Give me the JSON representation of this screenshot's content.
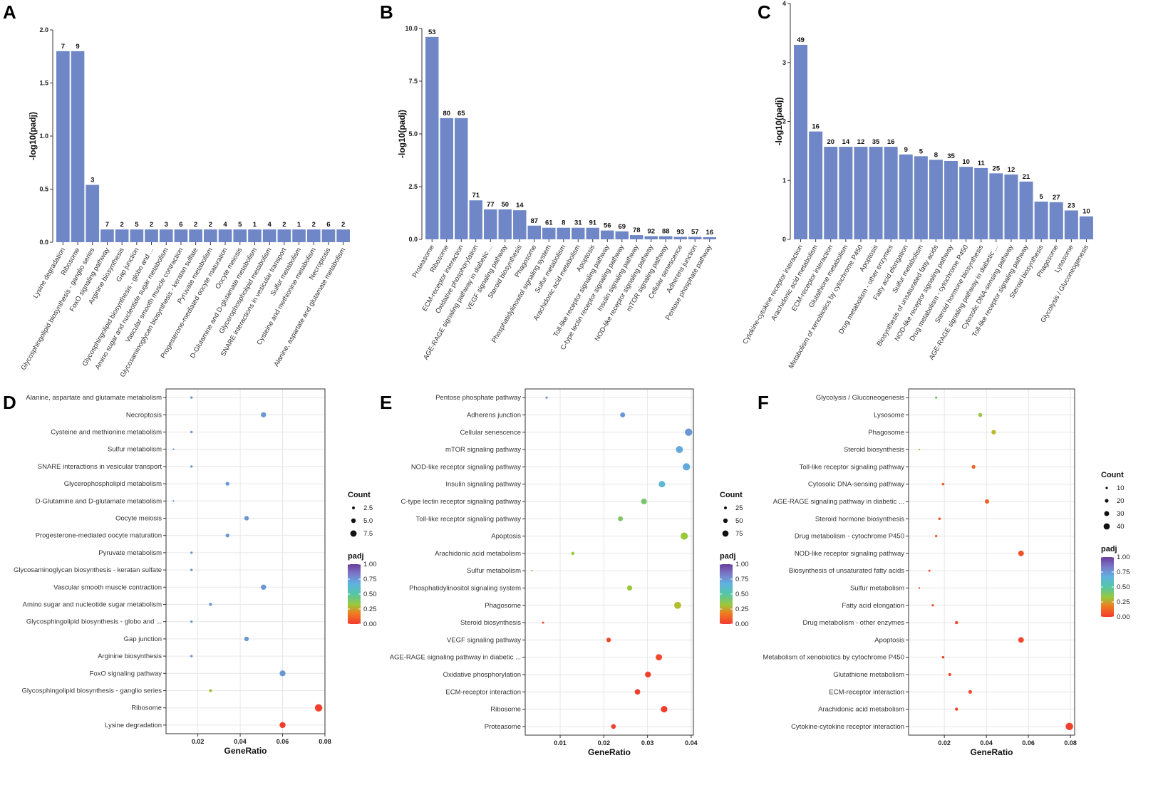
{
  "figure": {
    "panels": [
      "A",
      "B",
      "C",
      "D",
      "E",
      "F"
    ]
  },
  "colors": {
    "bar": "#6f87c6",
    "grid": "#e6e6e6",
    "frame": "#333333"
  },
  "chart_data": [
    {
      "type": "bar",
      "panel": "A",
      "ylabel": "-log10(padj)",
      "ylim": [
        0,
        2.0
      ],
      "yticks": [
        "0.0",
        "0.5",
        "1.0",
        "1.5",
        "2.0"
      ],
      "categories": [
        "Lysine degradation",
        "Ribosome",
        "Glycosphingolipid biosynthesis - ganglio series",
        "FoxO signaling pathway",
        "Arginine biosynthesis",
        "Gap junction",
        "Glycosphingolipid biosynthesis - globo and ...",
        "Amino sugar and nucleotide sugar metabolism",
        "Vascular smooth muscle contraction",
        "Glycosaminoglycan biosynthesis - keratan sulfate",
        "Pyruvate metabolism",
        "Progesterone-mediated oocyte maturation",
        "Oocyte meiosis",
        "D-Glutamine and D-glutamate metabolism",
        "Glycerophospholipid metabolism",
        "SNARE interactions in vesicular transport",
        "Sulfur metabolism",
        "Cysteine and methionine metabolism",
        "Necroptosis",
        "Alanine, aspartate and glutamate metabolism"
      ],
      "values": [
        1.8,
        1.8,
        0.54,
        0.12,
        0.12,
        0.12,
        0.12,
        0.12,
        0.12,
        0.12,
        0.12,
        0.12,
        0.12,
        0.12,
        0.12,
        0.12,
        0.12,
        0.12,
        0.12,
        0.12
      ],
      "labels": [
        "7",
        "9",
        "3",
        "7",
        "2",
        "5",
        "2",
        "3",
        "6",
        "2",
        "2",
        "4",
        "5",
        "1",
        "4",
        "2",
        "1",
        "2",
        "6",
        "2"
      ]
    },
    {
      "type": "bar",
      "panel": "B",
      "ylabel": "-log10(padj)",
      "ylim": [
        0,
        10.0
      ],
      "yticks": [
        "0.0",
        "2.5",
        "5.0",
        "7.5",
        "10.0"
      ],
      "categories": [
        "Proteasome",
        "Ribosome",
        "ECM-receptor interaction",
        "Oxidative phosphorylation",
        "AGE-RAGE signaling pathway in diabetic ...",
        "VEGF signaling pathway",
        "Steroid biosynthesis",
        "Phagosome",
        "Phosphatidylinositol signaling system",
        "Sulfur metabolism",
        "Arachidonic acid metabolism",
        "Apoptosis",
        "Toll-like receptor signaling pathway",
        "C-type lectin receptor signaling pathway",
        "Insulin signaling pathway",
        "NOD-like receptor signaling pathway",
        "mTOR signaling pathway",
        "Cellular senescence",
        "Adherens junction",
        "Pentose phosphate pathway"
      ],
      "values": [
        9.6,
        5.75,
        5.75,
        1.85,
        1.42,
        1.42,
        1.38,
        0.65,
        0.55,
        0.55,
        0.55,
        0.55,
        0.42,
        0.38,
        0.2,
        0.15,
        0.15,
        0.12,
        0.12,
        0.1
      ],
      "labels": [
        "53",
        "80",
        "65",
        "71",
        "77",
        "50",
        "14",
        "87",
        "61",
        "8",
        "31",
        "91",
        "56",
        "69",
        "78",
        "92",
        "88",
        "93",
        "57",
        "16"
      ]
    },
    {
      "type": "bar",
      "panel": "C",
      "ylabel": "-log10(padj)",
      "ylim": [
        0,
        4
      ],
      "yticks": [
        "0",
        "1",
        "2",
        "3",
        "4"
      ],
      "categories": [
        "Cytokine-cytokine receptor interaction",
        "Arachidonic acid metabolism",
        "ECM-receptor interaction",
        "Glutathione metabolism",
        "Metabolism of xenobiotics by cytochrome P450",
        "Apoptosis",
        "Drug metabolism - other enzymes",
        "Fatty acid elongation",
        "Sulfur metabolism",
        "Biosynthesis of unsaturated fatty acids",
        "NOD-like receptor signaling pathway",
        "Drug metabolism - cytochrome P450",
        "Steroid hormone biosynthesis",
        "AGE-RAGE signaling pathway in diabetic ...",
        "Cytosolic DNA-sensing pathway",
        "Toll-like receptor signaling pathway",
        "Steroid biosynthesis",
        "Phagosome",
        "Lysosome",
        "Glycolysis / Gluconeogenesis"
      ],
      "values": [
        3.3,
        1.83,
        1.57,
        1.57,
        1.57,
        1.57,
        1.57,
        1.44,
        1.41,
        1.35,
        1.33,
        1.23,
        1.21,
        1.12,
        1.1,
        0.98,
        0.64,
        0.63,
        0.49,
        0.39
      ],
      "labels": [
        "49",
        "16",
        "20",
        "14",
        "12",
        "35",
        "16",
        "9",
        "5",
        "8",
        "35",
        "10",
        "11",
        "25",
        "12",
        "21",
        "5",
        "27",
        "23",
        "10"
      ]
    },
    {
      "type": "scatter",
      "panel": "D",
      "xlabel": "GeneRatio",
      "xlim": [
        0.005,
        0.08
      ],
      "xticks": [
        0.02,
        0.04,
        0.06,
        0.08
      ],
      "categories": [
        "Lysine degradation",
        "Ribosome",
        "Glycosphingolipid biosynthesis - ganglio series",
        "FoxO signaling pathway",
        "Arginine biosynthesis",
        "Gap junction",
        "Glycosphingolipid biosynthesis - globo and ...",
        "Amino sugar and nucleotide sugar metabolism",
        "Vascular smooth muscle contraction",
        "Glycosaminoglycan biosynthesis - keratan sulfate",
        "Pyruvate metabolism",
        "Progesterone-mediated oocyte maturation",
        "Oocyte meiosis",
        "D-Glutamine and D-glutamate metabolism",
        "Glycerophospholipid metabolism",
        "SNARE interactions in vesicular transport",
        "Sulfur metabolism",
        "Cysteine and methionine metabolism",
        "Necroptosis",
        "Alanine, aspartate and glutamate metabolism"
      ],
      "gene_ratio": [
        0.06,
        0.077,
        0.026,
        0.06,
        0.017,
        0.043,
        0.017,
        0.026,
        0.051,
        0.017,
        0.017,
        0.034,
        0.043,
        0.0085,
        0.034,
        0.017,
        0.0085,
        0.017,
        0.051,
        0.017
      ],
      "count": [
        7,
        9,
        3,
        7,
        2,
        5,
        2,
        3,
        6,
        2,
        2,
        4,
        5,
        1,
        4,
        2,
        1,
        2,
        6,
        2
      ],
      "padj": [
        0.01,
        0.01,
        0.28,
        0.75,
        0.75,
        0.75,
        0.75,
        0.75,
        0.75,
        0.75,
        0.75,
        0.75,
        0.75,
        0.75,
        0.75,
        0.75,
        0.75,
        0.75,
        0.75,
        0.75
      ],
      "size_legend": {
        "title": "Count",
        "values": [
          2.5,
          5.0,
          7.5
        ],
        "labels": [
          "2.5",
          "5.0",
          "7.5"
        ]
      },
      "color_legend": {
        "title": "padj",
        "labels": [
          "1.00",
          "0.75",
          "0.50",
          "0.25",
          "0.00"
        ]
      },
      "size_range": [
        1,
        9
      ]
    },
    {
      "type": "scatter",
      "panel": "E",
      "xlabel": "GeneRatio",
      "xlim": [
        0.002,
        0.0405
      ],
      "xticks": [
        0.01,
        0.02,
        0.03,
        0.04
      ],
      "categories": [
        "Proteasome",
        "Ribosome",
        "ECM-receptor interaction",
        "Oxidative phosphorylation",
        "AGE-RAGE signaling pathway in diabetic ...",
        "VEGF signaling pathway",
        "Steroid biosynthesis",
        "Phagosome",
        "Phosphatidylinositol signaling system",
        "Sulfur metabolism",
        "Arachidonic acid metabolism",
        "Apoptosis",
        "Toll-like receptor signaling pathway",
        "C-type lectin receptor signaling pathway",
        "Insulin signaling pathway",
        "NOD-like receptor signaling pathway",
        "mTOR signaling pathway",
        "Cellular senescence",
        "Adherens junction",
        "Pentose phosphate pathway"
      ],
      "gene_ratio": [
        0.0222,
        0.0338,
        0.0277,
        0.0301,
        0.0326,
        0.0211,
        0.0061,
        0.0369,
        0.0259,
        0.0035,
        0.0129,
        0.0384,
        0.0238,
        0.0292,
        0.0333,
        0.0389,
        0.0373,
        0.0394,
        0.0243,
        0.0069
      ],
      "count": [
        53,
        80,
        65,
        71,
        77,
        50,
        14,
        87,
        61,
        8,
        31,
        91,
        56,
        69,
        78,
        92,
        88,
        93,
        57,
        16
      ],
      "padj": [
        0.01,
        0.01,
        0.01,
        0.01,
        0.03,
        0.03,
        0.03,
        0.25,
        0.3,
        0.3,
        0.3,
        0.3,
        0.38,
        0.4,
        0.62,
        0.7,
        0.7,
        0.75,
        0.75,
        0.78
      ],
      "size_legend": {
        "title": "Count",
        "values": [
          25,
          50,
          75
        ],
        "labels": [
          "25",
          "50",
          "75"
        ]
      },
      "color_legend": {
        "title": "padj",
        "labels": [
          "1.00",
          "0.75",
          "0.50",
          "0.25",
          "0.00"
        ]
      },
      "size_range": [
        8,
        93
      ]
    },
    {
      "type": "scatter",
      "panel": "F",
      "xlabel": "GeneRatio",
      "xlim": [
        0.003,
        0.082
      ],
      "xticks": [
        0.02,
        0.04,
        0.06,
        0.08
      ],
      "categories": [
        "Cytokine-cytokine receptor interaction",
        "Arachidonic acid metabolism",
        "ECM-receptor interaction",
        "Glutathione metabolism",
        "Metabolism of xenobiotics by cytochrome P450",
        "Apoptosis",
        "Drug metabolism - other enzymes",
        "Fatty acid elongation",
        "Sulfur metabolism",
        "Biosynthesis of unsaturated fatty acids",
        "NOD-like receptor signaling pathway",
        "Drug metabolism - cytochrome P450",
        "Steroid hormone biosynthesis",
        "AGE-RAGE signaling pathway in diabetic ...",
        "Cytosolic DNA-sensing pathway",
        "Toll-like receptor signaling pathway",
        "Steroid biosynthesis",
        "Phagosome",
        "Lysosome",
        "Glycolysis / Gluconeogenesis"
      ],
      "gene_ratio": [
        0.0795,
        0.0258,
        0.0323,
        0.0226,
        0.0194,
        0.0565,
        0.0258,
        0.0145,
        0.0081,
        0.0129,
        0.0565,
        0.0161,
        0.0177,
        0.0403,
        0.0194,
        0.0339,
        0.0081,
        0.0435,
        0.0371,
        0.0161
      ],
      "count": [
        49,
        16,
        20,
        14,
        12,
        35,
        16,
        9,
        5,
        8,
        35,
        10,
        11,
        25,
        12,
        21,
        5,
        27,
        23,
        10
      ],
      "padj": [
        0.01,
        0.02,
        0.03,
        0.03,
        0.03,
        0.03,
        0.03,
        0.04,
        0.04,
        0.04,
        0.05,
        0.06,
        0.06,
        0.08,
        0.08,
        0.1,
        0.23,
        0.23,
        0.32,
        0.4
      ],
      "size_legend": {
        "title": "Count",
        "values": [
          10,
          20,
          30,
          40
        ],
        "labels": [
          "10",
          "20",
          "30",
          "40"
        ]
      },
      "color_legend": {
        "title": "padj",
        "labels": [
          "1.00",
          "0.75",
          "0.50",
          "0.25",
          "0.00"
        ]
      },
      "size_range": [
        5,
        49
      ]
    }
  ]
}
